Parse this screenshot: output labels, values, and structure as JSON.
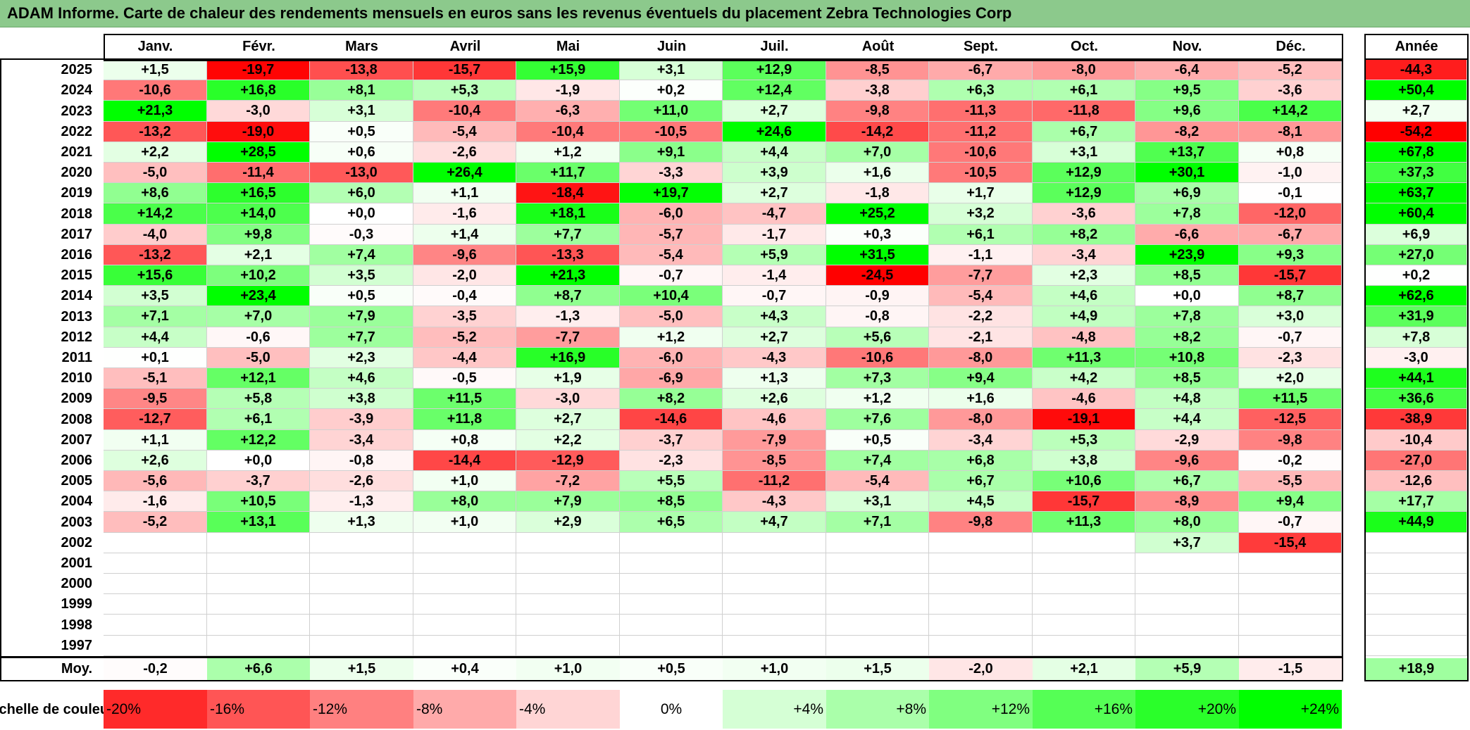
{
  "title": "ADAM Informe. Carte de chaleur des rendements mensuels en euros sans les revenus éventuels du placement Zebra Technologies Corp",
  "chart_data": {
    "type": "heatmap",
    "title": "ADAM Informe. Carte de chaleur des rendements mensuels en euros sans les revenus éventuels du placement Zebra Technologies Corp",
    "columns": [
      "Janv.",
      "Févr.",
      "Mars",
      "Avril",
      "Mai",
      "Juin",
      "Juil.",
      "Août",
      "Sept.",
      "Oct.",
      "Nov.",
      "Déc."
    ],
    "year_header": "Année",
    "rows": [
      {
        "year": "2025",
        "values": [
          1.5,
          -19.7,
          -13.8,
          -15.7,
          15.9,
          3.1,
          12.9,
          -8.5,
          -6.7,
          -8.0,
          -6.4,
          -5.2
        ],
        "annual": -44.3
      },
      {
        "year": "2024",
        "values": [
          -10.6,
          16.8,
          8.1,
          5.3,
          -1.9,
          0.2,
          12.4,
          -3.8,
          6.3,
          6.1,
          9.5,
          -3.6
        ],
        "annual": 50.4
      },
      {
        "year": "2023",
        "values": [
          21.3,
          -3.0,
          3.1,
          -10.4,
          -6.3,
          11.0,
          2.7,
          -9.8,
          -11.3,
          -11.8,
          9.6,
          14.2
        ],
        "annual": 2.7
      },
      {
        "year": "2022",
        "values": [
          -13.2,
          -19.0,
          0.5,
          -5.4,
          -10.4,
          -10.5,
          24.6,
          -14.2,
          -11.2,
          6.7,
          -8.2,
          -8.1
        ],
        "annual": -54.2
      },
      {
        "year": "2021",
        "values": [
          2.2,
          28.5,
          0.6,
          -2.6,
          1.2,
          9.1,
          4.4,
          7.0,
          -10.6,
          3.1,
          13.7,
          0.8
        ],
        "annual": 67.8
      },
      {
        "year": "2020",
        "values": [
          -5.0,
          -11.4,
          -13.0,
          26.4,
          11.7,
          -3.3,
          3.9,
          1.6,
          -10.5,
          12.9,
          30.1,
          -1.0
        ],
        "annual": 37.3
      },
      {
        "year": "2019",
        "values": [
          8.6,
          16.5,
          6.0,
          1.1,
          -18.4,
          19.7,
          2.7,
          -1.8,
          1.7,
          12.9,
          6.9,
          -0.1
        ],
        "annual": 63.7
      },
      {
        "year": "2018",
        "values": [
          14.2,
          14.0,
          0.0,
          -1.6,
          18.1,
          -6.0,
          -4.7,
          25.2,
          3.2,
          -3.6,
          7.8,
          -12.0
        ],
        "annual": 60.4
      },
      {
        "year": "2017",
        "values": [
          -4.0,
          9.8,
          -0.3,
          1.4,
          7.7,
          -5.7,
          -1.7,
          0.3,
          6.1,
          8.2,
          -6.6,
          -6.7
        ],
        "annual": 6.9
      },
      {
        "year": "2016",
        "values": [
          -13.2,
          2.1,
          7.4,
          -9.6,
          -13.3,
          -5.4,
          5.9,
          31.5,
          -1.1,
          -3.4,
          23.9,
          9.3
        ],
        "annual": 27.0
      },
      {
        "year": "2015",
        "values": [
          15.6,
          10.2,
          3.5,
          -2.0,
          21.3,
          -0.7,
          -1.4,
          -24.5,
          -7.7,
          2.3,
          8.5,
          -15.7
        ],
        "annual": 0.2
      },
      {
        "year": "2014",
        "values": [
          3.5,
          23.4,
          0.5,
          -0.4,
          8.7,
          10.4,
          -0.7,
          -0.9,
          -5.4,
          4.6,
          0.0,
          8.7
        ],
        "annual": 62.6
      },
      {
        "year": "2013",
        "values": [
          7.1,
          7.0,
          7.9,
          -3.5,
          -1.3,
          -5.0,
          4.3,
          -0.8,
          -2.2,
          4.9,
          7.8,
          3.0
        ],
        "annual": 31.9
      },
      {
        "year": "2012",
        "values": [
          4.4,
          -0.6,
          7.7,
          -5.2,
          -7.7,
          1.2,
          2.7,
          5.6,
          -2.1,
          -4.8,
          8.2,
          -0.7
        ],
        "annual": 7.8
      },
      {
        "year": "2011",
        "values": [
          0.1,
          -5.0,
          2.3,
          -4.4,
          16.9,
          -6.0,
          -4.3,
          -10.6,
          -8.0,
          11.3,
          10.8,
          -2.3
        ],
        "annual": -3.0
      },
      {
        "year": "2010",
        "values": [
          -5.1,
          12.1,
          4.6,
          -0.5,
          1.9,
          -6.9,
          1.3,
          7.3,
          9.4,
          4.2,
          8.5,
          2.0
        ],
        "annual": 44.1
      },
      {
        "year": "2009",
        "values": [
          -9.5,
          5.8,
          3.8,
          11.5,
          -3.0,
          8.2,
          2.6,
          1.2,
          1.6,
          -4.6,
          4.8,
          11.5
        ],
        "annual": 36.6
      },
      {
        "year": "2008",
        "values": [
          -12.7,
          6.1,
          -3.9,
          11.8,
          2.7,
          -14.6,
          -4.6,
          7.6,
          -8.0,
          -19.1,
          4.4,
          -12.5
        ],
        "annual": -38.9
      },
      {
        "year": "2007",
        "values": [
          1.1,
          12.2,
          -3.4,
          0.8,
          2.2,
          -3.7,
          -7.9,
          0.5,
          -3.4,
          5.3,
          -2.9,
          -9.8
        ],
        "annual": -10.4
      },
      {
        "year": "2006",
        "values": [
          2.6,
          0.0,
          -0.8,
          -14.4,
          -12.9,
          -2.3,
          -8.5,
          7.4,
          6.8,
          3.8,
          -9.6,
          -0.2
        ],
        "annual": -27.0
      },
      {
        "year": "2005",
        "values": [
          -5.6,
          -3.7,
          -2.6,
          1.0,
          -7.2,
          5.5,
          -11.2,
          -5.4,
          6.7,
          10.6,
          6.7,
          -5.5
        ],
        "annual": -12.6
      },
      {
        "year": "2004",
        "values": [
          -1.6,
          10.5,
          -1.3,
          8.0,
          7.9,
          8.5,
          -4.3,
          3.1,
          4.5,
          -15.7,
          -8.9,
          9.4
        ],
        "annual": 17.7
      },
      {
        "year": "2003",
        "values": [
          -5.2,
          13.1,
          1.3,
          1.0,
          2.9,
          6.5,
          4.7,
          7.1,
          -9.8,
          11.3,
          8.0,
          -0.7
        ],
        "annual": 44.9
      },
      {
        "year": "2002",
        "values": [
          null,
          null,
          null,
          null,
          null,
          null,
          null,
          null,
          null,
          null,
          3.7,
          -15.4
        ],
        "annual": null
      },
      {
        "year": "2001",
        "values": [
          null,
          null,
          null,
          null,
          null,
          null,
          null,
          null,
          null,
          null,
          null,
          null
        ],
        "annual": null
      },
      {
        "year": "2000",
        "values": [
          null,
          null,
          null,
          null,
          null,
          null,
          null,
          null,
          null,
          null,
          null,
          null
        ],
        "annual": null
      },
      {
        "year": "1999",
        "values": [
          null,
          null,
          null,
          null,
          null,
          null,
          null,
          null,
          null,
          null,
          null,
          null
        ],
        "annual": null
      },
      {
        "year": "1998",
        "values": [
          null,
          null,
          null,
          null,
          null,
          null,
          null,
          null,
          null,
          null,
          null,
          null
        ],
        "annual": null
      },
      {
        "year": "1997",
        "values": [
          null,
          null,
          null,
          null,
          null,
          null,
          null,
          null,
          null,
          null,
          null,
          null
        ],
        "annual": null
      }
    ],
    "average": {
      "label": "Moy.",
      "values": [
        -0.2,
        6.6,
        1.5,
        0.4,
        1.0,
        0.5,
        1.0,
        1.5,
        -2.0,
        2.1,
        5.9,
        -1.5
      ],
      "annual": 18.9
    },
    "legend": {
      "label": "Echelle de couleur",
      "stops": [
        "-20%",
        "-16%",
        "-12%",
        "-8%",
        "-4%",
        "0%",
        "+4%",
        "+8%",
        "+12%",
        "+16%",
        "+20%",
        "+24%"
      ]
    },
    "colors": {
      "negative_max": "#ff0000",
      "zero": "#ffffff",
      "positive_max": "#00ff00",
      "title_bar": "#8cc98c"
    }
  }
}
